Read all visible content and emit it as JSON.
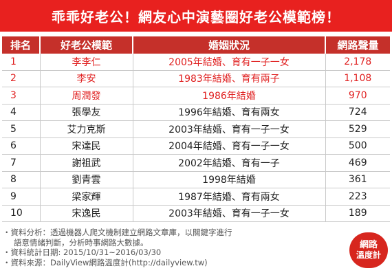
{
  "title": "乖乖好老公！網友心中演藝圈好老公模範榜！",
  "table": {
    "headers": [
      "排名",
      "好老公模範",
      "婚姻狀況",
      "網路聲量"
    ],
    "rows": [
      {
        "rank": "1",
        "name": "李李仁",
        "status": "2005年結婚、育有一子一女",
        "volume": "2,178",
        "highlight": true
      },
      {
        "rank": "2",
        "name": "李安",
        "status": "1983年結婚、育有兩子",
        "volume": "1,108",
        "highlight": true
      },
      {
        "rank": "3",
        "name": "周潤發",
        "status": "1986年結婚",
        "volume": "970",
        "highlight": true
      },
      {
        "rank": "4",
        "name": "張學友",
        "status": "1996年結婚、育有兩女",
        "volume": "724",
        "highlight": false
      },
      {
        "rank": "5",
        "name": "艾力克斯",
        "status": "2003年結婚、育有一子一女",
        "volume": "529",
        "highlight": false
      },
      {
        "rank": "6",
        "name": "宋達民",
        "status": "2004年結婚、育有一子一女",
        "volume": "500",
        "highlight": false
      },
      {
        "rank": "7",
        "name": "謝祖武",
        "status": "2002年結婚、育有一子",
        "volume": "469",
        "highlight": false
      },
      {
        "rank": "8",
        "name": "劉青雲",
        "status": "1998年結婚",
        "volume": "361",
        "highlight": false
      },
      {
        "rank": "9",
        "name": "梁家輝",
        "status": "1987年結婚、育有兩女",
        "volume": "223",
        "highlight": false
      },
      {
        "rank": "10",
        "name": "宋逸民",
        "status": "2003年結婚、育有一子一女",
        "volume": "189",
        "highlight": false
      }
    ]
  },
  "notes": {
    "line1": "・資料分析：透過機器人爬文機制建立網路文章庫，以關鍵字進行",
    "line2": "語意情緒判斷，分析時事網路大數據。",
    "line3": "・資料統計日期: 2015/10/31~2016/03/30",
    "line4": "・資料來源：DailyView網路溫度計(http://dailyview.tw)"
  },
  "logo": {
    "line1": "網路",
    "line2": "溫度計"
  },
  "colors": {
    "banner": "#e8211f",
    "header": "#c5302a",
    "highlight_text": "#e02020"
  }
}
